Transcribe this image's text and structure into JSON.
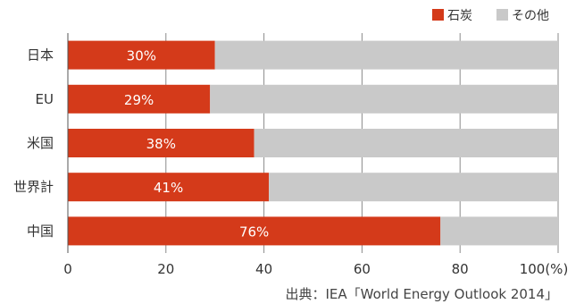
{
  "chart_data": {
    "type": "bar",
    "orientation": "horizontal",
    "stacked": true,
    "categories": [
      "日本",
      "EU",
      "米国",
      "世界計",
      "中国"
    ],
    "series": [
      {
        "name": "石炭",
        "values": [
          30,
          29,
          38,
          41,
          76
        ],
        "color": "#d43a1a"
      },
      {
        "name": "その他",
        "values": [
          70,
          71,
          62,
          59,
          24
        ],
        "color": "#c9c9c9"
      }
    ],
    "data_labels": [
      "30%",
      "29%",
      "38%",
      "41%",
      "76%"
    ],
    "xlim": [
      0,
      100
    ],
    "xticks": [
      "0",
      "20",
      "40",
      "60",
      "80",
      "100(%)"
    ],
    "grid": true,
    "legend_position": "top-right",
    "source": "出典：IEA「World Energy Outlook 2014」"
  }
}
